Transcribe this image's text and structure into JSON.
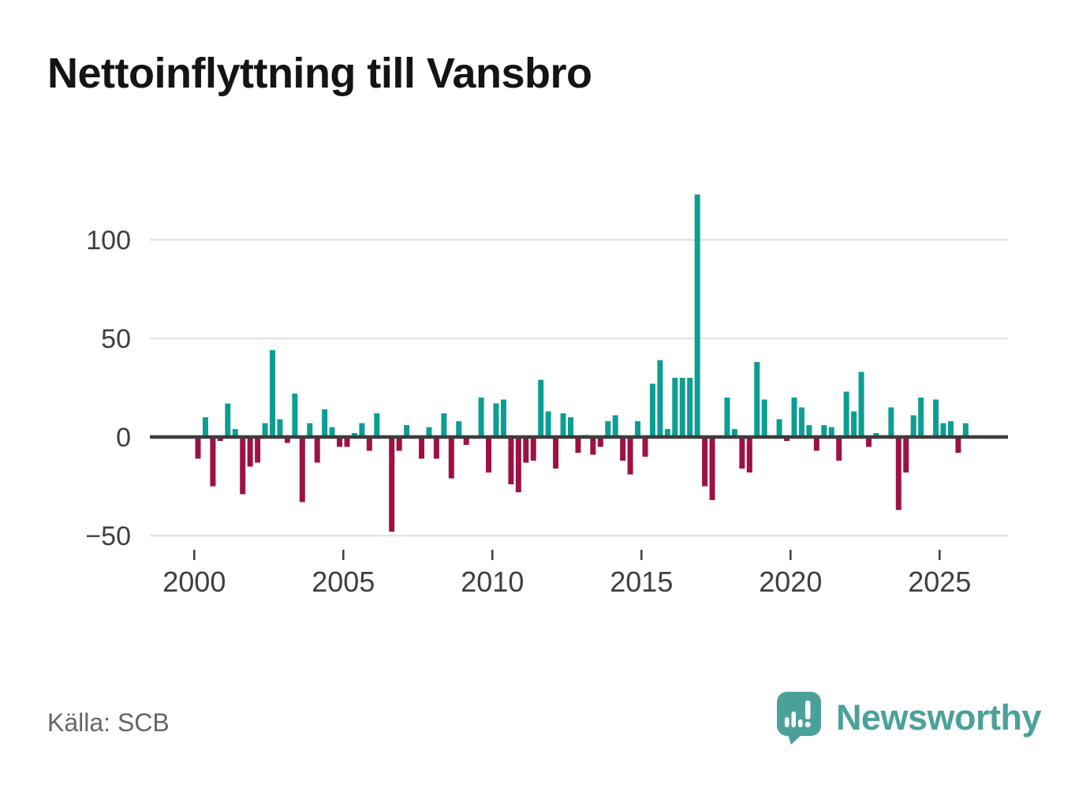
{
  "title": "Nettoinflyttning till Vansbro",
  "source": "Källa: SCB",
  "logo": {
    "text": "Newsworthy"
  },
  "colors": {
    "positive": "#0d9e92",
    "negative": "#9e1145",
    "grid": "#e3e3e3",
    "zero_line": "#3d3d3d",
    "axis_text": "#3f3f3f",
    "title_text": "#141414",
    "source_text": "#666666",
    "logo_teal": "#4ba19a"
  },
  "chart_data": {
    "type": "bar",
    "title": "Nettoinflyttning till Vansbro",
    "frequency": "quarterly",
    "x_start": "2000-Q1",
    "x_end": "2025-Q4",
    "start_year": 2000,
    "values": [
      -11,
      10,
      -25,
      -2,
      17,
      4,
      -29,
      -15,
      -13,
      7,
      44,
      9,
      -3,
      22,
      -33,
      7,
      -13,
      14,
      5,
      -5,
      -5,
      2,
      7,
      -7,
      12,
      0,
      -48,
      -7,
      6,
      0,
      -11,
      5,
      -11,
      12,
      -21,
      8,
      -4,
      0,
      20,
      -18,
      17,
      19,
      -24,
      -28,
      -13,
      -12,
      29,
      13,
      -16,
      12,
      10,
      -8,
      1,
      -9,
      -5,
      8,
      11,
      -12,
      -19,
      8,
      -10,
      27,
      39,
      4,
      30,
      30,
      30,
      123,
      -25,
      -32,
      0,
      20,
      4,
      -16,
      -18,
      38,
      19,
      0,
      9,
      -2,
      20,
      15,
      6,
      -7,
      6,
      5,
      -12,
      23,
      13,
      33,
      -5,
      2,
      1,
      15,
      -37,
      -18,
      11,
      20,
      0,
      19,
      7,
      8,
      -8,
      7
    ],
    "yticks": [
      100,
      50,
      0,
      -50
    ],
    "xticks": [
      2000,
      2005,
      2010,
      2015,
      2020,
      2025
    ],
    "ylim": [
      -54,
      126
    ],
    "grid": true,
    "legend": "none",
    "positive_color": "#0d9e92",
    "negative_color": "#9e1145"
  }
}
